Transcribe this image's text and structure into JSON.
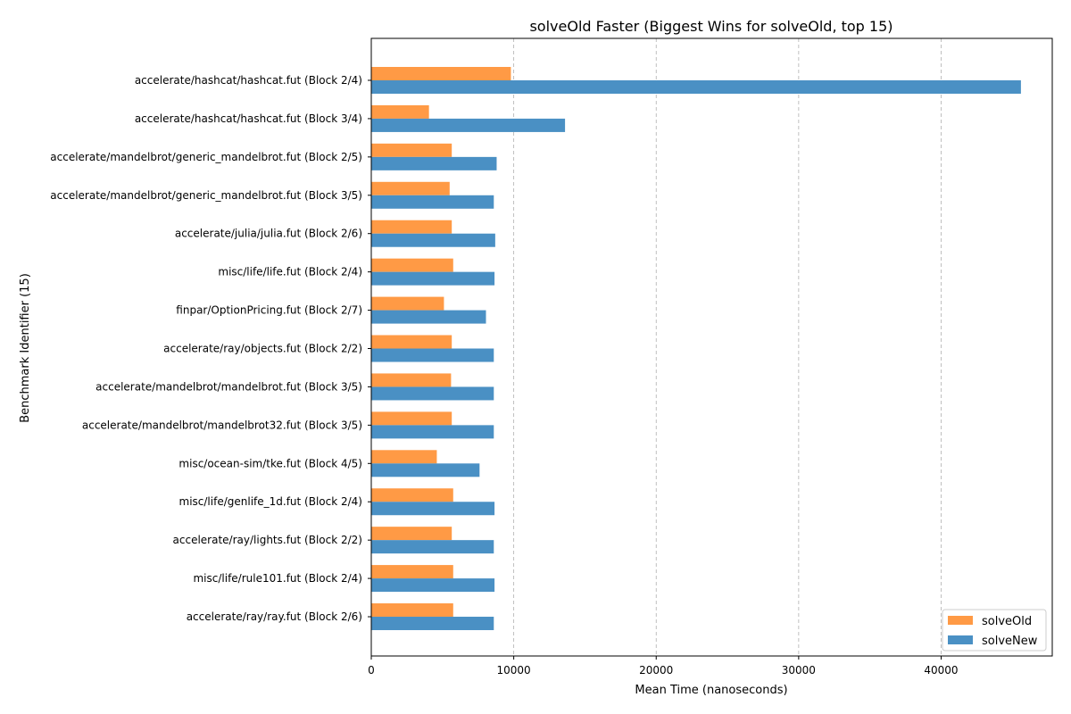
{
  "chart_data": {
    "type": "bar",
    "orientation": "horizontal",
    "title": "solveOld Faster (Biggest Wins for solveOld, top 15)",
    "xlabel": "Mean Time (nanoseconds)",
    "ylabel": "Benchmark Identifier (15)",
    "xlim": [
      0,
      47800
    ],
    "xticks": [
      0,
      10000,
      20000,
      30000,
      40000
    ],
    "xtick_labels": [
      "0",
      "10000",
      "20000",
      "30000",
      "40000"
    ],
    "grid": "x-dashed",
    "legend_position": "bottom-right",
    "categories": [
      "accelerate/hashcat/hashcat.fut (Block 2/4)",
      "accelerate/hashcat/hashcat.fut (Block 3/4)",
      "accelerate/mandelbrot/generic_mandelbrot.fut (Block 2/5)",
      "accelerate/mandelbrot/generic_mandelbrot.fut (Block 3/5)",
      "accelerate/julia/julia.fut (Block 2/6)",
      "misc/life/life.fut (Block 2/4)",
      "finpar/OptionPricing.fut (Block 2/7)",
      "accelerate/ray/objects.fut (Block 2/2)",
      "accelerate/mandelbrot/mandelbrot.fut (Block 3/5)",
      "accelerate/mandelbrot/mandelbrot32.fut (Block 3/5)",
      "misc/ocean-sim/tke.fut (Block 4/5)",
      "misc/life/genlife_1d.fut (Block 2/4)",
      "accelerate/ray/lights.fut (Block 2/2)",
      "misc/life/rule101.fut (Block 2/4)",
      "accelerate/ray/ray.fut (Block 2/6)"
    ],
    "series": [
      {
        "name": "solveOld",
        "color": "#ff9a45",
        "values": [
          9800,
          4050,
          5650,
          5500,
          5650,
          5750,
          5100,
          5650,
          5600,
          5650,
          4600,
          5750,
          5650,
          5750,
          5750
        ]
      },
      {
        "name": "solveNew",
        "color": "#4a90c4",
        "values": [
          45600,
          13600,
          8800,
          8600,
          8700,
          8650,
          8050,
          8600,
          8600,
          8600,
          7600,
          8650,
          8600,
          8650,
          8600
        ]
      }
    ]
  }
}
